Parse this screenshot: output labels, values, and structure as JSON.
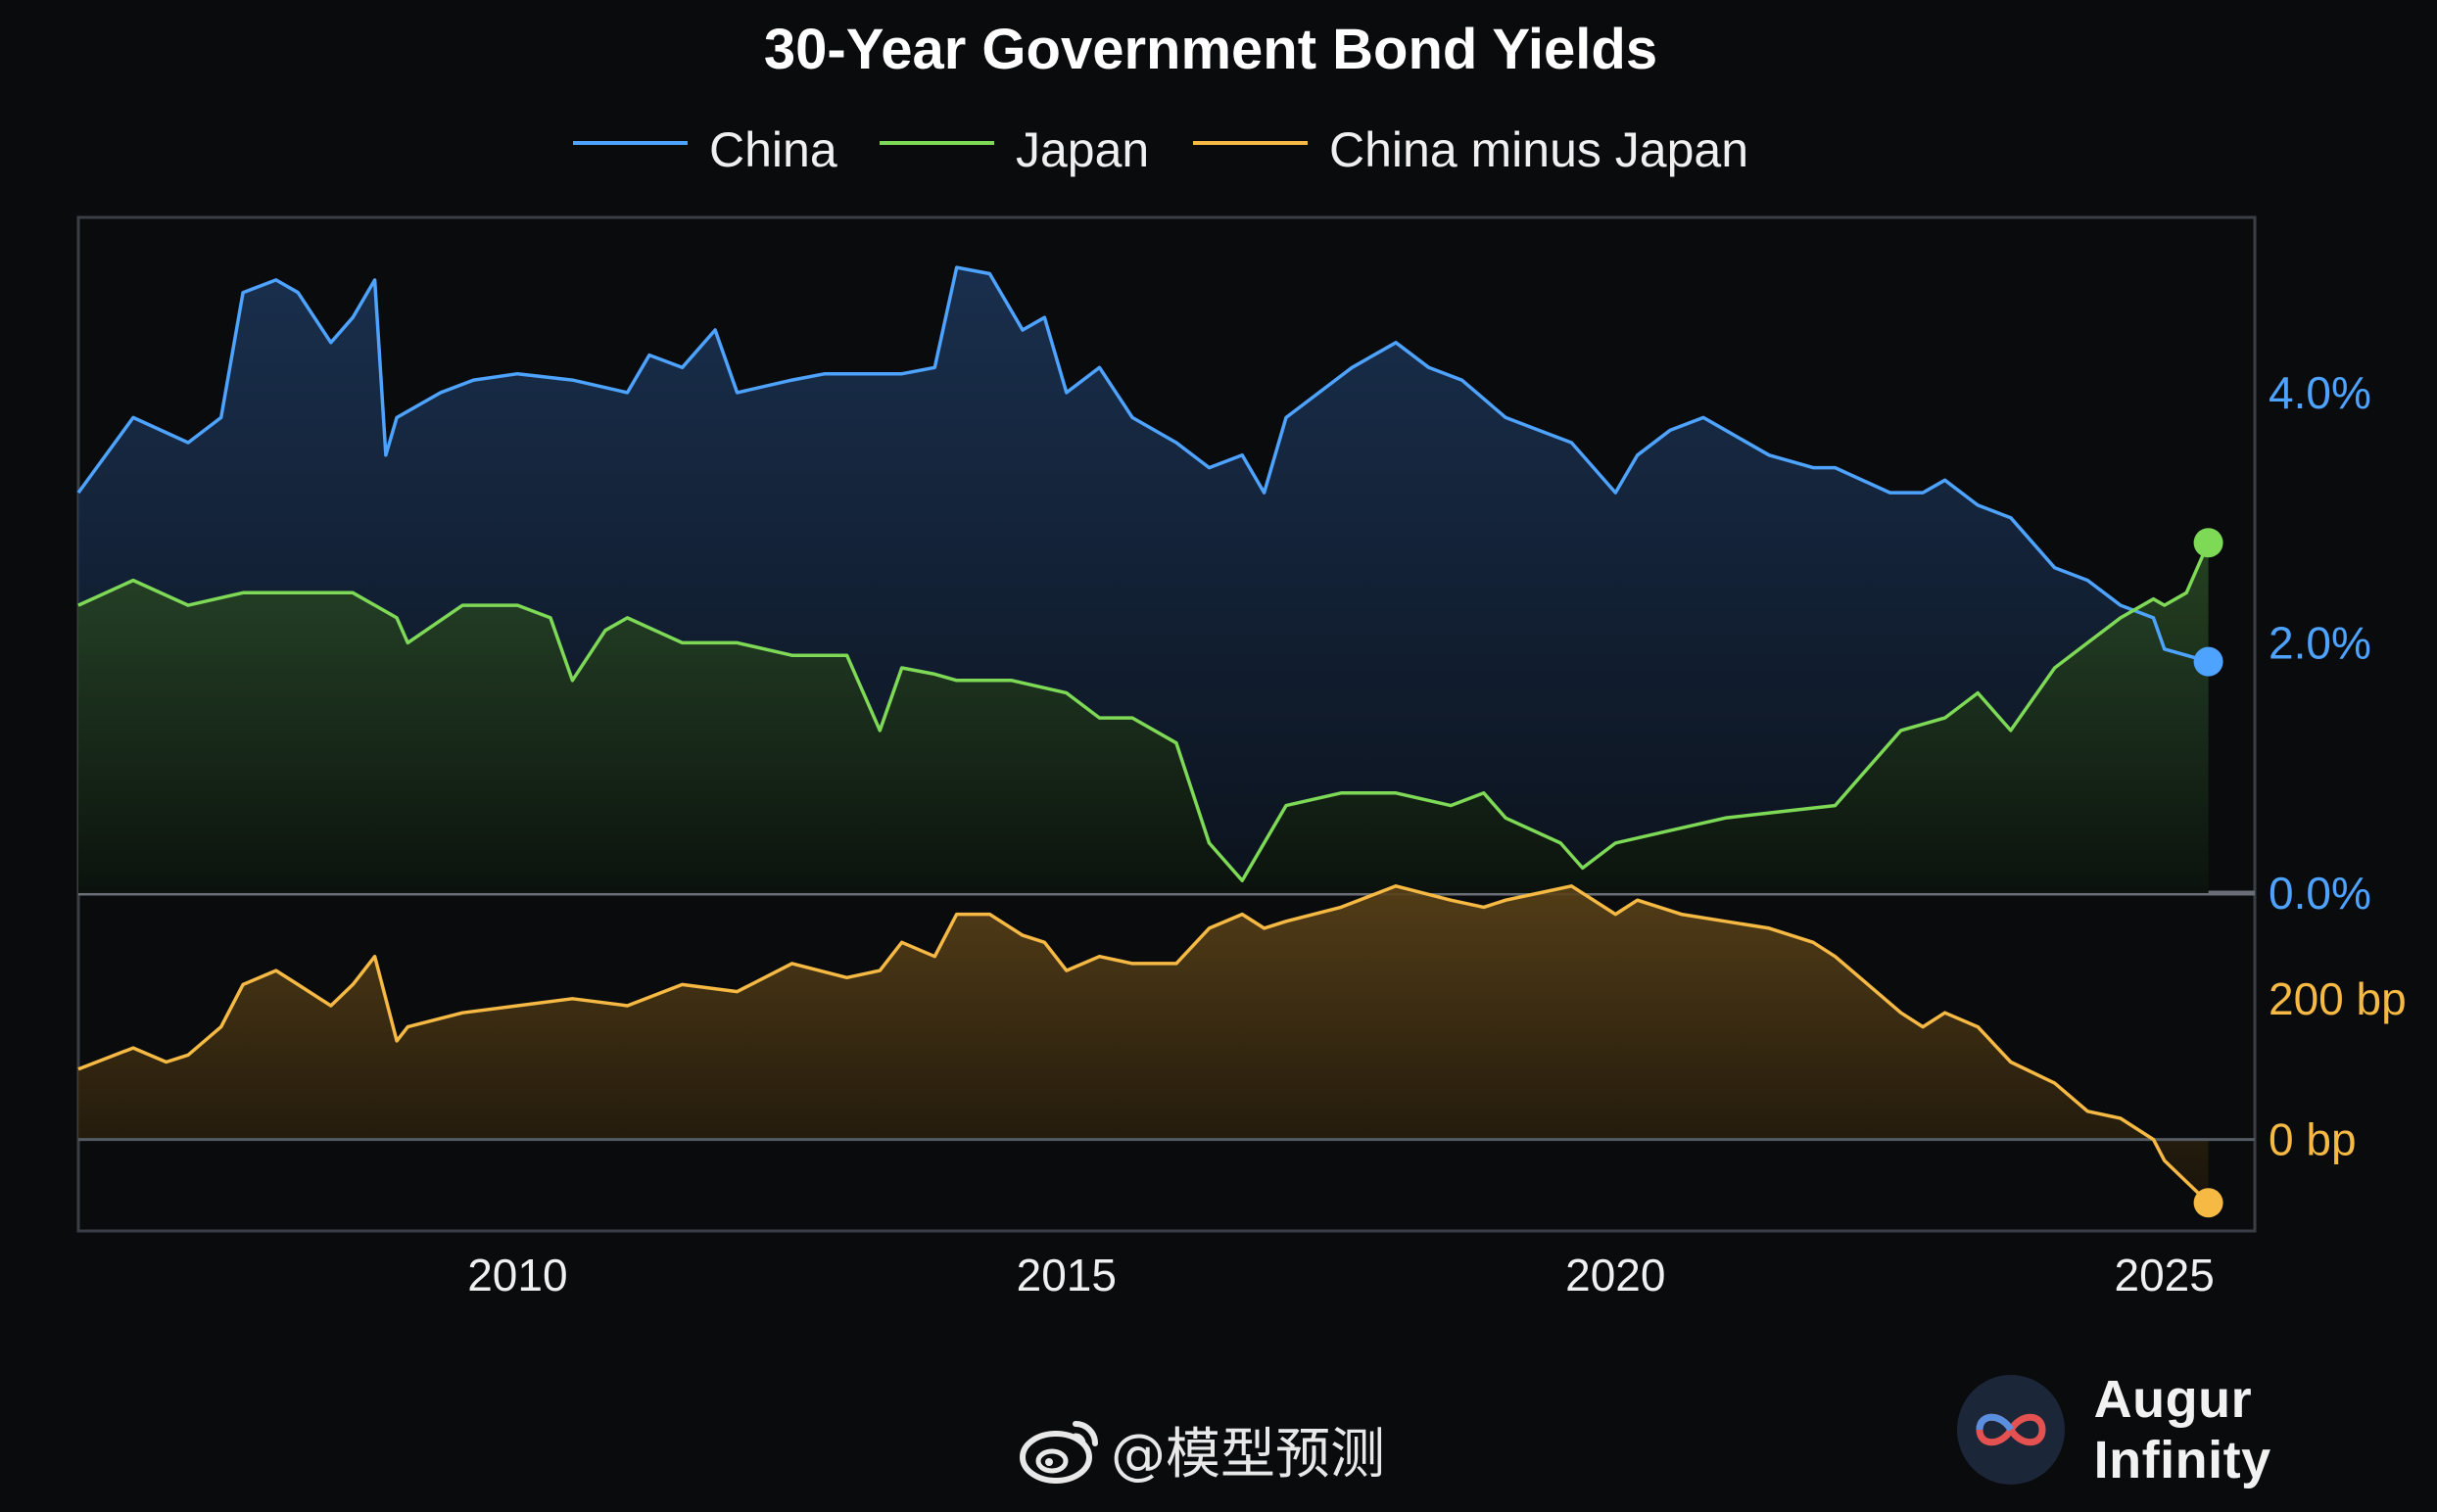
{
  "chart_data": {
    "type": "line",
    "title": "30-Year Government Bond Yields",
    "legend": {
      "placement": "top-center"
    },
    "colors": {
      "china": "#4da3ff",
      "japan": "#7ed957",
      "spread": "#f5b944",
      "background": "#0a0b0d"
    },
    "x_ticks": [
      "2010",
      "2015",
      "2020",
      "2025"
    ],
    "xlim": [
      2006.0,
      2025.6
    ],
    "top_panel": {
      "ylabel": "",
      "ylim": [
        0,
        5.4
      ],
      "y_ticks": [
        "0.0%",
        "2.0%",
        "4.0%"
      ],
      "series": [
        {
          "name": "China",
          "x": [
            2006.0,
            2006.5,
            2007.0,
            2007.3,
            2007.5,
            2007.8,
            2008.0,
            2008.3,
            2008.5,
            2008.7,
            2008.8,
            2008.9,
            2009.3,
            2009.6,
            2010.0,
            2010.5,
            2011.0,
            2011.2,
            2011.5,
            2011.8,
            2012.0,
            2012.5,
            2012.8,
            2013.0,
            2013.5,
            2013.8,
            2014.0,
            2014.3,
            2014.6,
            2014.8,
            2015.0,
            2015.3,
            2015.6,
            2016.0,
            2016.3,
            2016.6,
            2016.8,
            2017.0,
            2017.3,
            2017.6,
            2018.0,
            2018.3,
            2018.6,
            2019.0,
            2019.3,
            2019.6,
            2020.0,
            2020.2,
            2020.5,
            2020.8,
            2021.0,
            2021.4,
            2021.8,
            2022.0,
            2022.5,
            2022.8,
            2023.0,
            2023.3,
            2023.6,
            2024.0,
            2024.3,
            2024.6,
            2024.9,
            2025.0,
            2025.2,
            2025.4
          ],
          "values": [
            3.2,
            3.8,
            3.6,
            3.8,
            4.8,
            4.9,
            4.8,
            4.4,
            4.6,
            4.9,
            3.5,
            3.8,
            4.0,
            4.1,
            4.15,
            4.1,
            4.0,
            4.3,
            4.2,
            4.5,
            4.0,
            4.1,
            4.15,
            4.15,
            4.15,
            4.2,
            5.0,
            4.95,
            4.5,
            4.6,
            4.0,
            4.2,
            3.8,
            3.6,
            3.4,
            3.5,
            3.2,
            3.8,
            4.0,
            4.2,
            4.4,
            4.2,
            4.1,
            3.8,
            3.7,
            3.6,
            3.2,
            3.5,
            3.7,
            3.8,
            3.7,
            3.5,
            3.4,
            3.4,
            3.2,
            3.2,
            3.3,
            3.1,
            3.0,
            2.6,
            2.5,
            2.3,
            2.2,
            1.95,
            1.9,
            1.85
          ]
        },
        {
          "name": "Japan",
          "x": [
            2006.0,
            2006.5,
            2007.0,
            2007.5,
            2008.0,
            2008.5,
            2008.9,
            2009.0,
            2009.5,
            2010.0,
            2010.3,
            2010.5,
            2010.8,
            2011.0,
            2011.5,
            2012.0,
            2012.5,
            2013.0,
            2013.3,
            2013.5,
            2013.8,
            2014.0,
            2014.5,
            2015.0,
            2015.3,
            2015.6,
            2016.0,
            2016.3,
            2016.6,
            2016.8,
            2017.0,
            2017.5,
            2018.0,
            2018.5,
            2018.8,
            2019.0,
            2019.5,
            2019.7,
            2020.0,
            2020.5,
            2021.0,
            2021.5,
            2022.0,
            2022.3,
            2022.6,
            2023.0,
            2023.3,
            2023.6,
            2024.0,
            2024.3,
            2024.6,
            2024.9,
            2025.0,
            2025.2,
            2025.4
          ],
          "values": [
            2.3,
            2.5,
            2.3,
            2.4,
            2.4,
            2.4,
            2.2,
            2.0,
            2.3,
            2.3,
            2.2,
            1.7,
            2.1,
            2.2,
            2.0,
            2.0,
            1.9,
            1.9,
            1.3,
            1.8,
            1.75,
            1.7,
            1.7,
            1.6,
            1.4,
            1.4,
            1.2,
            0.4,
            0.1,
            0.4,
            0.7,
            0.8,
            0.8,
            0.7,
            0.8,
            0.6,
            0.4,
            0.2,
            0.4,
            0.5,
            0.6,
            0.65,
            0.7,
            1.0,
            1.3,
            1.4,
            1.6,
            1.3,
            1.8,
            2.0,
            2.2,
            2.35,
            2.3,
            2.4,
            2.8
          ]
        }
      ]
    },
    "bottom_panel": {
      "ylabel": "",
      "ylim": [
        -130,
        350
      ],
      "y_ticks": [
        "200 bp",
        "0 bp"
      ],
      "series": [
        {
          "name": "China minus Japan",
          "x": [
            2006.0,
            2006.5,
            2006.8,
            2007.0,
            2007.3,
            2007.5,
            2007.8,
            2008.0,
            2008.3,
            2008.5,
            2008.7,
            2008.9,
            2009.0,
            2009.5,
            2010.0,
            2010.5,
            2011.0,
            2011.5,
            2012.0,
            2012.5,
            2013.0,
            2013.3,
            2013.5,
            2013.8,
            2014.0,
            2014.3,
            2014.6,
            2014.8,
            2015.0,
            2015.3,
            2015.6,
            2016.0,
            2016.3,
            2016.6,
            2016.8,
            2017.0,
            2017.5,
            2018.0,
            2018.5,
            2018.8,
            2019.0,
            2019.3,
            2019.6,
            2020.0,
            2020.2,
            2020.6,
            2021.0,
            2021.4,
            2021.8,
            2022.0,
            2022.3,
            2022.6,
            2022.8,
            2023.0,
            2023.3,
            2023.6,
            2024.0,
            2024.3,
            2024.6,
            2024.9,
            2025.0,
            2025.2,
            2025.4
          ],
          "values": [
            100,
            130,
            110,
            120,
            160,
            220,
            240,
            220,
            190,
            220,
            260,
            140,
            160,
            180,
            190,
            200,
            190,
            220,
            210,
            250,
            230,
            240,
            280,
            260,
            320,
            320,
            290,
            280,
            240,
            260,
            250,
            250,
            300,
            320,
            300,
            310,
            330,
            360,
            340,
            330,
            340,
            350,
            360,
            320,
            340,
            320,
            310,
            300,
            280,
            260,
            220,
            180,
            160,
            180,
            160,
            110,
            80,
            40,
            30,
            0,
            -30,
            -60,
            -90
          ]
        }
      ]
    }
  },
  "watermark": {
    "handle": "@模型预测"
  },
  "brand": {
    "name": "Augur Infinity"
  }
}
